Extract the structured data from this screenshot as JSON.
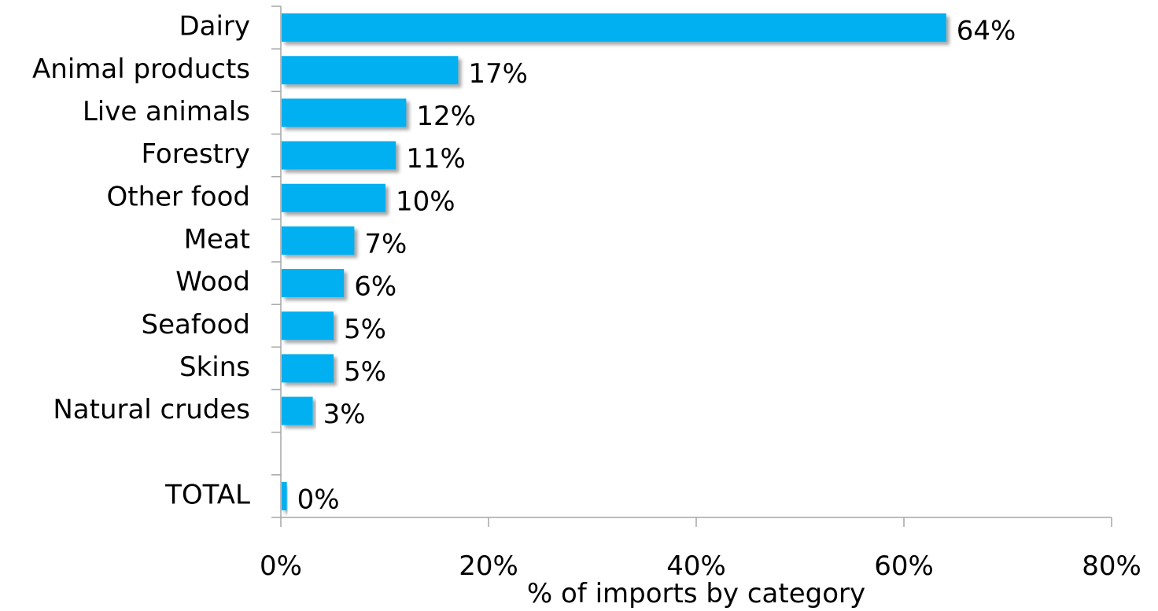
{
  "chart_data": {
    "type": "bar",
    "orientation": "horizontal",
    "categories": [
      "Dairy",
      "Animal products",
      "Live animals",
      "Forestry",
      "Other food",
      "Meat",
      "Wood",
      "Seafood",
      "Skins",
      "Natural crudes",
      "",
      "TOTAL"
    ],
    "values": [
      64,
      17,
      12,
      11,
      10,
      7,
      6,
      5,
      5,
      3,
      null,
      0.5
    ],
    "value_labels": [
      "64%",
      "17%",
      "12%",
      "11%",
      "10%",
      "7%",
      "6%",
      "5%",
      "5%",
      "3%",
      "",
      "0%"
    ],
    "xlabel": "% of imports by category",
    "ylabel": "",
    "xlim": [
      0,
      80
    ],
    "x_ticks": [
      0,
      20,
      40,
      60,
      80
    ],
    "x_tick_labels": [
      "0%",
      "20%",
      "40%",
      "60%",
      "80%"
    ],
    "grid": false,
    "legend": "none",
    "bar_color": "#00B0F0",
    "axis_color": "#A6A6A6"
  }
}
